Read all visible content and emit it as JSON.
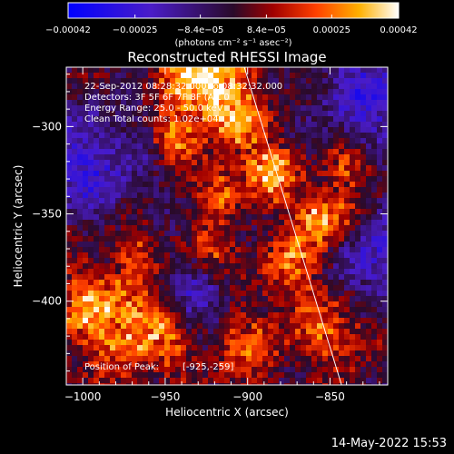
{
  "chart_data": {
    "type": "heatmap",
    "title": "Reconstructed RHESSI Image",
    "xlabel": "Heliocentric X (arcsec)",
    "ylabel": "Heliocentric Y (arcsec)",
    "xlim": [
      -1010,
      -815
    ],
    "ylim": [
      -448,
      -266
    ],
    "x_ticks": [
      -1000,
      -950,
      -900,
      -850
    ],
    "y_ticks": [
      -300,
      -350,
      -400
    ],
    "x_tick_labels": [
      "−1000",
      "−950",
      "−900",
      "−850"
    ],
    "y_tick_labels": [
      "−300",
      "−350",
      "−400"
    ],
    "colorbar": {
      "range": [
        -0.00042,
        0.00042
      ],
      "tick_values": [
        -0.00042,
        -0.00025,
        -8.4e-05,
        8.4e-05,
        0.00025,
        0.00042
      ],
      "tick_labels": [
        "−0.00042",
        "−0.00025",
        "−8.4e−05",
        "8.4e−05",
        "0.00025",
        "0.00042"
      ],
      "unit_label": "(photons cm⁻² s⁻¹ asec⁻²)"
    },
    "annotations": [
      "22-Sep-2012 08:28:32.000 to 08:32:32.000",
      "Detectors: 3F 5F 6F 7F 8F (Att 0",
      "Energy Range: 25.0 - 50.0 keV",
      "Clean     Total counts: 1.02e+04"
    ],
    "peak": {
      "label": "Position of Peak:",
      "value": "[-925,-259]",
      "x": -925,
      "y": -259
    },
    "limb_line": [
      [
        -902,
        -266
      ],
      [
        -843,
        -448
      ]
    ],
    "grid": false,
    "legend": "none"
  },
  "footer": {
    "date": "14-May-2022 15:53"
  }
}
